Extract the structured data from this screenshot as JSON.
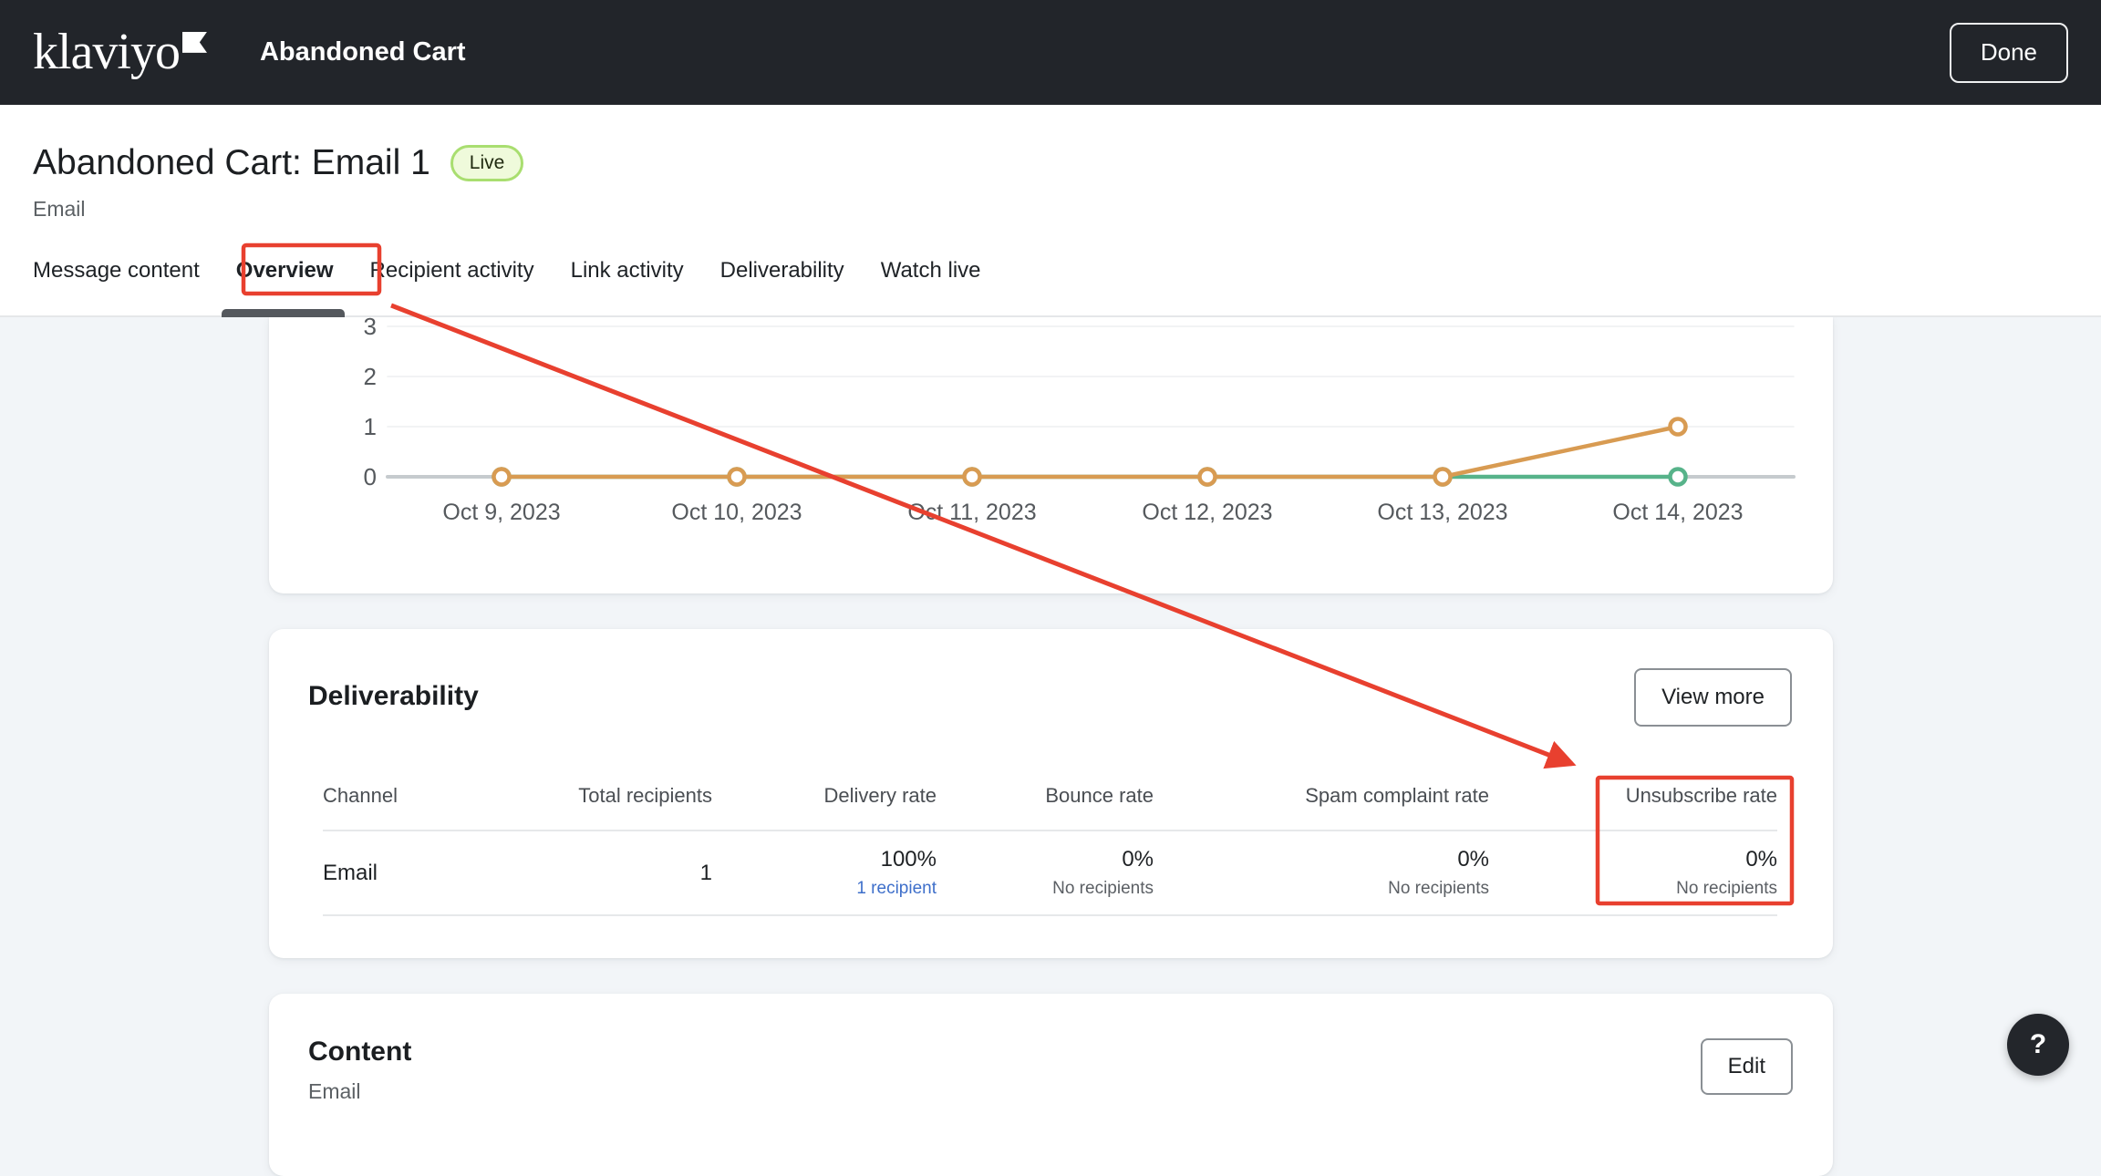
{
  "topbar": {
    "logo_text": "klaviyo",
    "title": "Abandoned Cart",
    "done_label": "Done"
  },
  "page_header": {
    "title": "Abandoned Cart: Email 1",
    "status_badge": "Live",
    "subtitle": "Email"
  },
  "tabs": [
    {
      "label": "Message content",
      "active": false
    },
    {
      "label": "Overview",
      "active": true
    },
    {
      "label": "Recipient activity",
      "active": false
    },
    {
      "label": "Link activity",
      "active": false
    },
    {
      "label": "Deliverability",
      "active": false
    },
    {
      "label": "Watch live",
      "active": false
    }
  ],
  "chart_data": {
    "type": "line",
    "x": [
      "Oct 9, 2023",
      "Oct 10, 2023",
      "Oct 11, 2023",
      "Oct 12, 2023",
      "Oct 13, 2023",
      "Oct 14, 2023"
    ],
    "series": [
      {
        "name": "orange-series",
        "color": "#D89B52",
        "values": [
          0,
          0,
          0,
          0,
          0,
          1
        ]
      },
      {
        "name": "green-series",
        "color": "#57B38A",
        "values": [
          0,
          0,
          0,
          0,
          0,
          0
        ]
      }
    ],
    "yticks": [
      0,
      1,
      2,
      3
    ],
    "ylim": [
      0,
      3.2
    ],
    "grid": true,
    "legend_position": "none",
    "title": "",
    "xlabel": "",
    "ylabel": "",
    "axis_color": "#C6CBCE",
    "gridline_color": "#EDEFF0",
    "tick_label_color": "#55595D"
  },
  "deliverability": {
    "heading": "Deliverability",
    "view_more_label": "View more",
    "table": {
      "headers": [
        "Channel",
        "Total recipients",
        "Delivery rate",
        "Bounce rate",
        "Spam complaint rate",
        "Unsubscribe rate"
      ],
      "row": {
        "channel": "Email",
        "total_recipients": "1",
        "delivery_rate": "100%",
        "delivery_rate_sub": "1 recipient",
        "bounce_rate": "0%",
        "bounce_rate_sub": "No recipients",
        "spam_rate": "0%",
        "spam_rate_sub": "No recipients",
        "unsubscribe_rate": "0%",
        "unsubscribe_rate_sub": "No recipients"
      }
    }
  },
  "content_section": {
    "heading": "Content",
    "subtitle": "Email",
    "edit_label": "Edit"
  },
  "help_button": {
    "label": "?"
  },
  "annotation": {
    "color": "#E8402F"
  }
}
